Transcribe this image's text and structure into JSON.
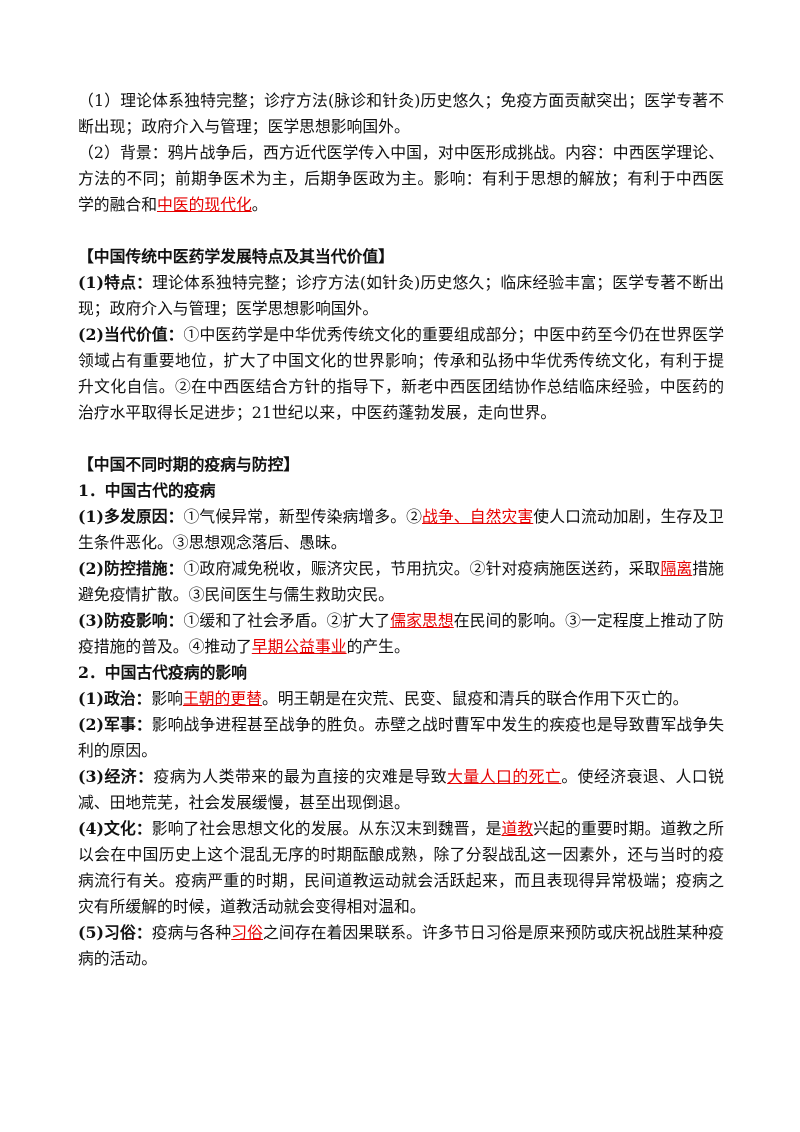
{
  "highlight_color": "#e60000",
  "blocks": [
    {
      "segments": [
        "（1）理论体系独特完整；诊疗方法(脉诊和针灸)历史悠久；免疫方面贡献突出；医学专著不断出现；政府介入与管理；医学思想影响国外。"
      ]
    },
    {
      "segments": [
        "（2）背景：鸦片战争后，西方近代医学传入中国，对中医形成挑战。内容：中西医学理论、方法的不同；前期争医术为主，后期争医政为主。影响：有利于思想的解放；有利于中西医学的融合和",
        {
          "text": "中医的现代化",
          "highlight": true
        },
        "。"
      ]
    },
    {
      "heading": "【中国传统中医药学发展特点及其当代价值】"
    },
    {
      "label": "(1)特点：",
      "segments": [
        "理论体系独特完整；诊疗方法(如针灸)历史悠久；临床经验丰富；医学专著不断出现；政府介入与管理；医学思想影响国外。"
      ]
    },
    {
      "label": "(2)当代价值：",
      "segments": [
        "①中医药学是中华优秀传统文化的重要组成部分；中医中药至今仍在世界医学领域占有重要地位，扩大了中国文化的世界影响；传承和弘扬中华优秀传统文化，有利于提升文化自信。②在中西医结合方针的指导下，新老中西医团结协作总结临床经验，中医药的治疗水平取得长足进步；21世纪以来，中医药蓬勃发展，走向世界。"
      ]
    },
    {
      "heading": "【中国不同时期的疫病与防控】"
    },
    {
      "subheading": "1．中国古代的疫病"
    },
    {
      "label": "(1)多发原因：",
      "segments": [
        "①气候异常，新型传染病增多。②",
        {
          "text": "战争、自然灾害",
          "highlight": true
        },
        "使人口流动加剧，生存及卫生条件恶化。③思想观念落后、愚昧。"
      ]
    },
    {
      "label": "(2)防控措施：",
      "segments": [
        "①政府减免税收，赈济灾民，节用抗灾。②针对疫病施医送药，采取",
        {
          "text": "隔离",
          "highlight": true
        },
        "措施避免疫情扩散。③民间医生与儒生救助灾民。"
      ]
    },
    {
      "label": "(3)防疫影响：",
      "segments": [
        "①缓和了社会矛盾。②扩大了",
        {
          "text": "儒家思想",
          "highlight": true
        },
        "在民间的影响。③一定程度上推动了防疫措施的普及。④推动了",
        {
          "text": "早期公益事业",
          "highlight": true
        },
        "的产生。"
      ]
    },
    {
      "subheading": "2．中国古代疫病的影响"
    },
    {
      "label": "(1)政治：",
      "segments": [
        "影响",
        {
          "text": "王朝的更替",
          "highlight": true
        },
        "。明王朝是在灾荒、民变、鼠疫和清兵的联合作用下灭亡的。"
      ]
    },
    {
      "label": "(2)军事：",
      "segments": [
        "影响战争进程甚至战争的胜负。赤壁之战时曹军中发生的疾疫也是导致曹军战争失利的原因。"
      ]
    },
    {
      "label": "(3)经济：",
      "segments": [
        "疫病为人类带来的最为直接的灾难是导致",
        {
          "text": "大量人口的死亡",
          "highlight": true
        },
        "。使经济衰退、人口锐减、田地荒芜，社会发展缓慢，甚至出现倒退。"
      ]
    },
    {
      "label": "(4)文化：",
      "segments": [
        "影响了社会思想文化的发展。从东汉末到魏晋，是",
        {
          "text": "道教",
          "highlight": true
        },
        "兴起的重要时期。道教之所以会在中国历史上这个混乱无序的时期酝酿成熟，除了分裂战乱这一因素外，还与当时的疫病流行有关。疫病严重的时期，民间道教运动就会活跃起来，而且表现得异常极端；疫病之灾有所缓解的时候，道教活动就会变得相对温和。"
      ]
    },
    {
      "label": "(5)习俗：",
      "segments": [
        "疫病与各种",
        {
          "text": "习俗",
          "highlight": true
        },
        "之间存在着因果联系。许多节日习俗是原来预防或庆祝战胜某种疫病的活动。"
      ]
    }
  ]
}
